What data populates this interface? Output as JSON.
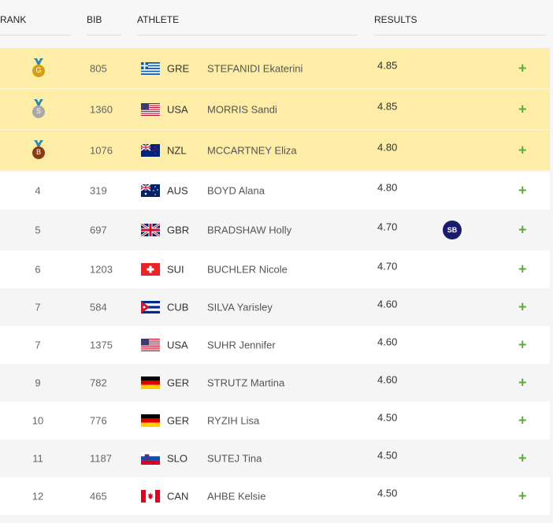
{
  "headers": {
    "rank": "RANK",
    "bib": "BIB",
    "athlete": "ATHLETE",
    "results": "RESULTS"
  },
  "rows": [
    {
      "rank": "G",
      "medal": "gold",
      "bib": "805",
      "country": "GRE",
      "name": "STEFANIDI Ekaterini",
      "result": "4.85",
      "note": ""
    },
    {
      "rank": "S",
      "medal": "silver",
      "bib": "1360",
      "country": "USA",
      "name": "MORRIS Sandi",
      "result": "4.85",
      "note": ""
    },
    {
      "rank": "B",
      "medal": "bronze",
      "bib": "1076",
      "country": "NZL",
      "name": "MCCARTNEY Eliza",
      "result": "4.80",
      "note": ""
    },
    {
      "rank": "4",
      "bib": "319",
      "country": "AUS",
      "name": "BOYD Alana",
      "result": "4.80",
      "note": ""
    },
    {
      "rank": "5",
      "bib": "697",
      "country": "GBR",
      "name": "BRADSHAW Holly",
      "result": "4.70",
      "note": "SB"
    },
    {
      "rank": "6",
      "bib": "1203",
      "country": "SUI",
      "name": "BUCHLER Nicole",
      "result": "4.70",
      "note": ""
    },
    {
      "rank": "7",
      "bib": "584",
      "country": "CUB",
      "name": "SILVA Yarisley",
      "result": "4.60",
      "note": ""
    },
    {
      "rank": "7",
      "bib": "1375",
      "country": "USA",
      "name": "SUHR Jennifer",
      "result": "4.60",
      "note": ""
    },
    {
      "rank": "9",
      "bib": "782",
      "country": "GER",
      "name": "STRUTZ Martina",
      "result": "4.60",
      "note": ""
    },
    {
      "rank": "10",
      "bib": "776",
      "country": "GER",
      "name": "RYZIH Lisa",
      "result": "4.50",
      "note": ""
    },
    {
      "rank": "11",
      "bib": "1187",
      "country": "SLO",
      "name": "SUTEJ Tina",
      "result": "4.50",
      "note": ""
    },
    {
      "rank": "12",
      "bib": "465",
      "country": "CAN",
      "name": "AHBE Kelsie",
      "result": "4.50",
      "note": ""
    }
  ],
  "expand_label": "+",
  "colors": {
    "gold": "#d4a017",
    "silver": "#a8a8a8",
    "bronze": "#8b3a12",
    "ribbon": "#2a8aa8",
    "medal_row": "#fdeda6",
    "plus": "#5aab3c",
    "sb": "#1c1a6b"
  }
}
